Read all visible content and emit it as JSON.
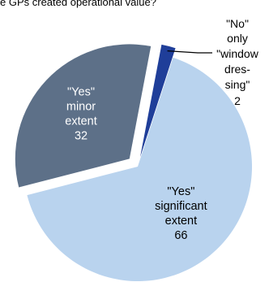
{
  "title": "e GPs created operational value?",
  "chart_data": {
    "type": "pie",
    "title": "e GPs created operational value?",
    "slices": [
      {
        "label_lines": [
          "\"Yes\"",
          "significant",
          "extent",
          "66"
        ],
        "category": "\"Yes\" significant extent",
        "value": 66,
        "color": "#b9d3ee"
      },
      {
        "label_lines": [
          "\"Yes\"",
          "minor",
          "extent",
          "32"
        ],
        "category": "\"Yes\" minor extent",
        "value": 32,
        "color": "#5d7088"
      },
      {
        "label_lines": [
          "\"No\"",
          "only",
          "\"window",
          "dres-",
          "sing\"",
          "2"
        ],
        "category": "\"No\" only \"window dressing\"",
        "value": 2,
        "color": "#1f3e99"
      }
    ]
  }
}
